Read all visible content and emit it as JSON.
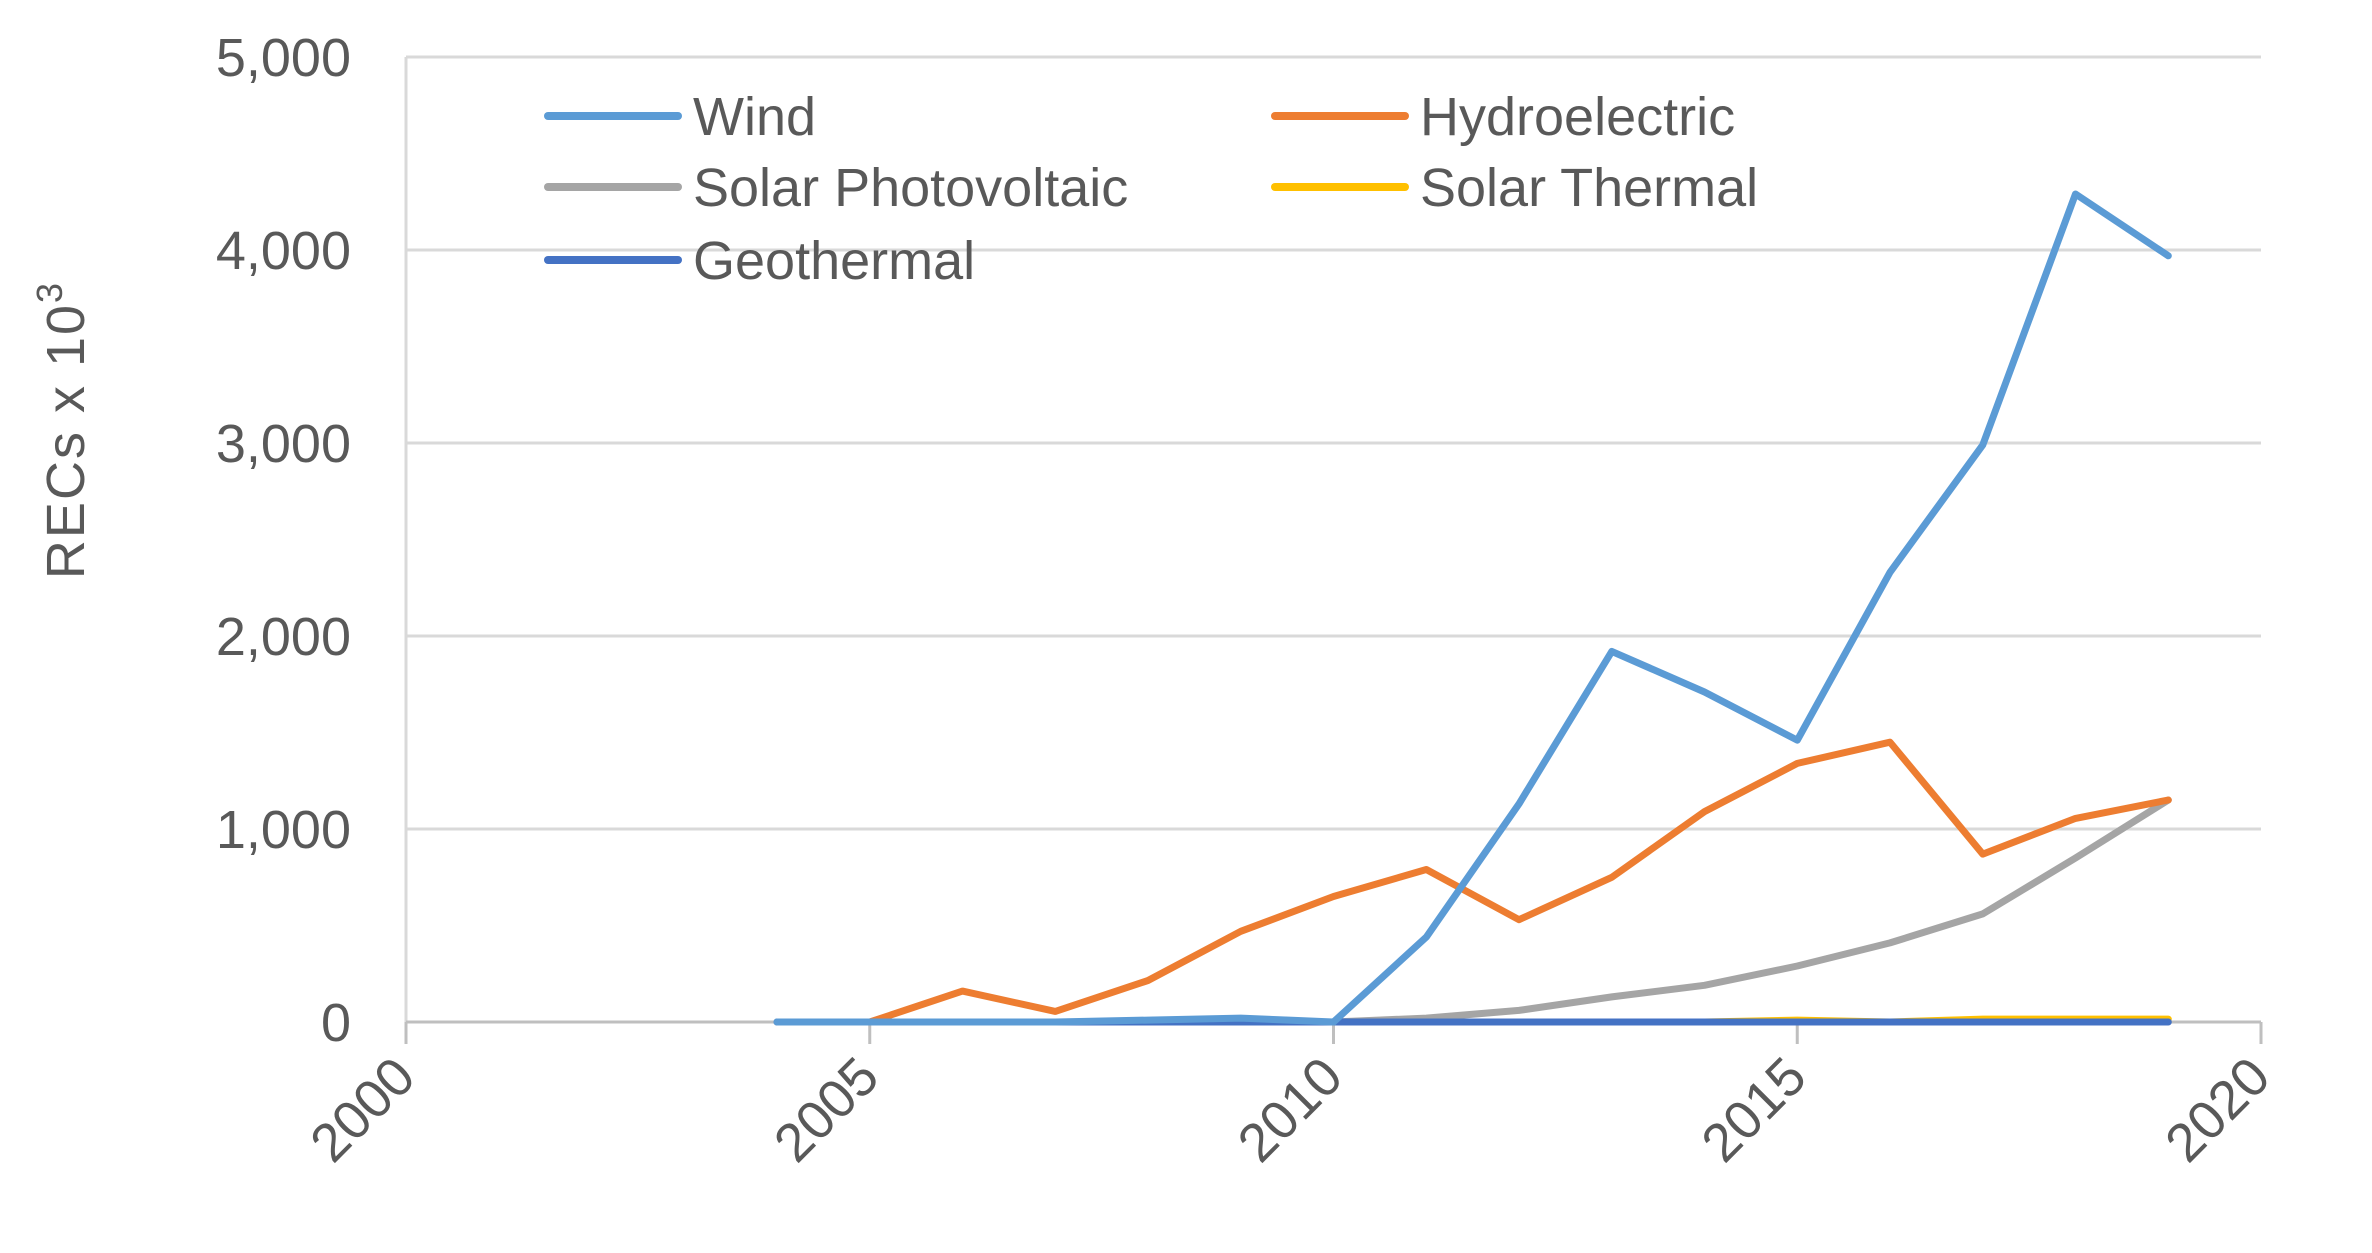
{
  "chart_data": {
    "type": "line",
    "title": "",
    "xlabel": "",
    "ylabel": "RECs  x  10",
    "ylabel_superscript": "3",
    "xlim": [
      2000,
      2020
    ],
    "ylim": [
      0,
      5000
    ],
    "xticks": [
      "2000",
      "2005",
      "2010",
      "2015",
      "2020"
    ],
    "yticks": [
      "0",
      "1,000",
      "2,000",
      "3,000",
      "4,000",
      "5,000"
    ],
    "grid": "horizontal",
    "legend_placement": "top-left",
    "series": [
      {
        "name": "Wind",
        "color": "#5B9BD5",
        "x": [
          2004,
          2005,
          2006,
          2007,
          2008,
          2009,
          2010,
          2011,
          2012,
          2013,
          2014,
          2015,
          2016,
          2017,
          2018,
          2019
        ],
        "y": [
          0,
          0,
          0,
          0,
          10,
          20,
          0,
          440,
          1130,
          1920,
          1710,
          1460,
          2330,
          2990,
          4290,
          3970
        ]
      },
      {
        "name": "Hydroelectric",
        "color": "#ED7D31",
        "x": [
          2005,
          2006,
          2007,
          2008,
          2009,
          2010,
          2011,
          2012,
          2013,
          2014,
          2015,
          2016,
          2017,
          2018,
          2019
        ],
        "y": [
          0,
          160,
          55,
          215,
          470,
          650,
          790,
          530,
          750,
          1090,
          1340,
          1450,
          870,
          1055,
          1150
        ]
      },
      {
        "name": "Solar Photovoltaic",
        "color": "#A5A5A5",
        "x": [
          2004,
          2005,
          2006,
          2007,
          2008,
          2009,
          2010,
          2011,
          2012,
          2013,
          2014,
          2015,
          2016,
          2017,
          2018,
          2019
        ],
        "y": [
          0,
          0,
          0,
          0,
          0,
          0,
          0,
          20,
          60,
          130,
          190,
          290,
          410,
          560,
          850,
          1150
        ]
      },
      {
        "name": "Solar Thermal",
        "color": "#FFC000",
        "x": [
          2010,
          2011,
          2012,
          2013,
          2014,
          2015,
          2016,
          2017,
          2018,
          2019
        ],
        "y": [
          0,
          0,
          0,
          0,
          0,
          10,
          0,
          15,
          15,
          15
        ]
      },
      {
        "name": "Geothermal",
        "color": "#4472C4",
        "x": [
          2004,
          2006,
          2008,
          2010,
          2012,
          2014,
          2016,
          2018,
          2019
        ],
        "y": [
          0,
          0,
          0,
          0,
          0,
          0,
          0,
          0,
          0
        ]
      }
    ]
  }
}
